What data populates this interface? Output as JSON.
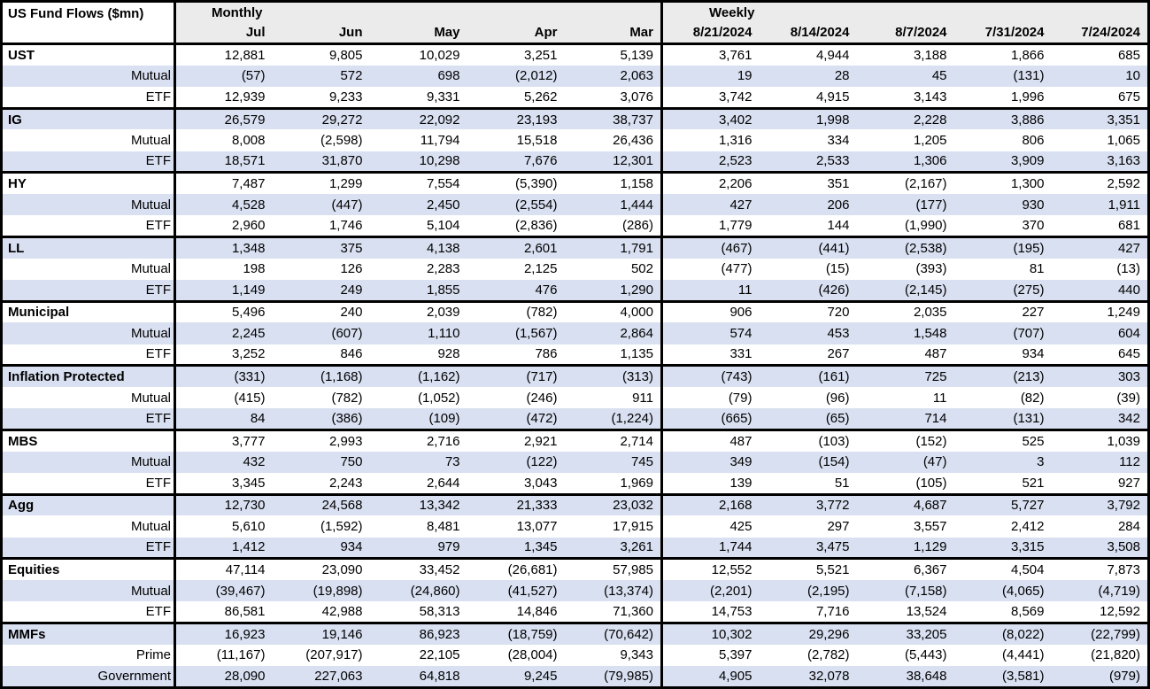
{
  "colors": {
    "band_row_bg": "#D9E0F1",
    "header_bg": "#EBEBEB",
    "border": "#000000"
  },
  "table": {
    "title": "US Fund Flows ($mn)",
    "sections": [
      {
        "label": "Monthly",
        "columns": [
          "Jul",
          "Jun",
          "May",
          "Apr",
          "Mar"
        ]
      },
      {
        "label": "Weekly",
        "columns": [
          "8/21/2024",
          "8/14/2024",
          "8/7/2024",
          "7/31/2024",
          "7/24/2024"
        ]
      }
    ],
    "groups": [
      {
        "name": "UST",
        "rows": [
          {
            "label": "UST",
            "monthly": [
              "12,881",
              "9,805",
              "10,029",
              "3,251",
              "5,139"
            ],
            "weekly": [
              "3,761",
              "4,944",
              "3,188",
              "1,866",
              "685"
            ]
          },
          {
            "label": "Mutual",
            "monthly": [
              "(57)",
              "572",
              "698",
              "(2,012)",
              "2,063"
            ],
            "weekly": [
              "19",
              "28",
              "45",
              "(131)",
              "10"
            ]
          },
          {
            "label": "ETF",
            "monthly": [
              "12,939",
              "9,233",
              "9,331",
              "5,262",
              "3,076"
            ],
            "weekly": [
              "3,742",
              "4,915",
              "3,143",
              "1,996",
              "675"
            ]
          }
        ]
      },
      {
        "name": "IG",
        "rows": [
          {
            "label": "IG",
            "monthly": [
              "26,579",
              "29,272",
              "22,092",
              "23,193",
              "38,737"
            ],
            "weekly": [
              "3,402",
              "1,998",
              "2,228",
              "3,886",
              "3,351"
            ]
          },
          {
            "label": "Mutual",
            "monthly": [
              "8,008",
              "(2,598)",
              "11,794",
              "15,518",
              "26,436"
            ],
            "weekly": [
              "1,316",
              "334",
              "1,205",
              "806",
              "1,065"
            ]
          },
          {
            "label": "ETF",
            "monthly": [
              "18,571",
              "31,870",
              "10,298",
              "7,676",
              "12,301"
            ],
            "weekly": [
              "2,523",
              "2,533",
              "1,306",
              "3,909",
              "3,163"
            ]
          }
        ]
      },
      {
        "name": "HY",
        "rows": [
          {
            "label": "HY",
            "monthly": [
              "7,487",
              "1,299",
              "7,554",
              "(5,390)",
              "1,158"
            ],
            "weekly": [
              "2,206",
              "351",
              "(2,167)",
              "1,300",
              "2,592"
            ]
          },
          {
            "label": "Mutual",
            "monthly": [
              "4,528",
              "(447)",
              "2,450",
              "(2,554)",
              "1,444"
            ],
            "weekly": [
              "427",
              "206",
              "(177)",
              "930",
              "1,911"
            ]
          },
          {
            "label": "ETF",
            "monthly": [
              "2,960",
              "1,746",
              "5,104",
              "(2,836)",
              "(286)"
            ],
            "weekly": [
              "1,779",
              "144",
              "(1,990)",
              "370",
              "681"
            ]
          }
        ]
      },
      {
        "name": "LL",
        "rows": [
          {
            "label": "LL",
            "monthly": [
              "1,348",
              "375",
              "4,138",
              "2,601",
              "1,791"
            ],
            "weekly": [
              "(467)",
              "(441)",
              "(2,538)",
              "(195)",
              "427"
            ]
          },
          {
            "label": "Mutual",
            "monthly": [
              "198",
              "126",
              "2,283",
              "2,125",
              "502"
            ],
            "weekly": [
              "(477)",
              "(15)",
              "(393)",
              "81",
              "(13)"
            ]
          },
          {
            "label": "ETF",
            "monthly": [
              "1,149",
              "249",
              "1,855",
              "476",
              "1,290"
            ],
            "weekly": [
              "11",
              "(426)",
              "(2,145)",
              "(275)",
              "440"
            ]
          }
        ]
      },
      {
        "name": "Municipal",
        "rows": [
          {
            "label": "Municipal",
            "monthly": [
              "5,496",
              "240",
              "2,039",
              "(782)",
              "4,000"
            ],
            "weekly": [
              "906",
              "720",
              "2,035",
              "227",
              "1,249"
            ]
          },
          {
            "label": "Mutual",
            "monthly": [
              "2,245",
              "(607)",
              "1,110",
              "(1,567)",
              "2,864"
            ],
            "weekly": [
              "574",
              "453",
              "1,548",
              "(707)",
              "604"
            ]
          },
          {
            "label": "ETF",
            "monthly": [
              "3,252",
              "846",
              "928",
              "786",
              "1,135"
            ],
            "weekly": [
              "331",
              "267",
              "487",
              "934",
              "645"
            ]
          }
        ]
      },
      {
        "name": "Inflation Protected",
        "rows": [
          {
            "label": "Inflation Protected",
            "monthly": [
              "(331)",
              "(1,168)",
              "(1,162)",
              "(717)",
              "(313)"
            ],
            "weekly": [
              "(743)",
              "(161)",
              "725",
              "(213)",
              "303"
            ]
          },
          {
            "label": "Mutual",
            "monthly": [
              "(415)",
              "(782)",
              "(1,052)",
              "(246)",
              "911"
            ],
            "weekly": [
              "(79)",
              "(96)",
              "11",
              "(82)",
              "(39)"
            ]
          },
          {
            "label": "ETF",
            "monthly": [
              "84",
              "(386)",
              "(109)",
              "(472)",
              "(1,224)"
            ],
            "weekly": [
              "(665)",
              "(65)",
              "714",
              "(131)",
              "342"
            ]
          }
        ]
      },
      {
        "name": "MBS",
        "rows": [
          {
            "label": "MBS",
            "monthly": [
              "3,777",
              "2,993",
              "2,716",
              "2,921",
              "2,714"
            ],
            "weekly": [
              "487",
              "(103)",
              "(152)",
              "525",
              "1,039"
            ]
          },
          {
            "label": "Mutual",
            "monthly": [
              "432",
              "750",
              "73",
              "(122)",
              "745"
            ],
            "weekly": [
              "349",
              "(154)",
              "(47)",
              "3",
              "112"
            ]
          },
          {
            "label": "ETF",
            "monthly": [
              "3,345",
              "2,243",
              "2,644",
              "3,043",
              "1,969"
            ],
            "weekly": [
              "139",
              "51",
              "(105)",
              "521",
              "927"
            ]
          }
        ]
      },
      {
        "name": "Agg",
        "rows": [
          {
            "label": "Agg",
            "monthly": [
              "12,730",
              "24,568",
              "13,342",
              "21,333",
              "23,032"
            ],
            "weekly": [
              "2,168",
              "3,772",
              "4,687",
              "5,727",
              "3,792"
            ]
          },
          {
            "label": "Mutual",
            "monthly": [
              "5,610",
              "(1,592)",
              "8,481",
              "13,077",
              "17,915"
            ],
            "weekly": [
              "425",
              "297",
              "3,557",
              "2,412",
              "284"
            ]
          },
          {
            "label": "ETF",
            "monthly": [
              "1,412",
              "934",
              "979",
              "1,345",
              "3,261"
            ],
            "weekly": [
              "1,744",
              "3,475",
              "1,129",
              "3,315",
              "3,508"
            ]
          }
        ]
      },
      {
        "name": "Equities",
        "rows": [
          {
            "label": "Equities",
            "monthly": [
              "47,114",
              "23,090",
              "33,452",
              "(26,681)",
              "57,985"
            ],
            "weekly": [
              "12,552",
              "5,521",
              "6,367",
              "4,504",
              "7,873"
            ]
          },
          {
            "label": "Mutual",
            "monthly": [
              "(39,467)",
              "(19,898)",
              "(24,860)",
              "(41,527)",
              "(13,374)"
            ],
            "weekly": [
              "(2,201)",
              "(2,195)",
              "(7,158)",
              "(4,065)",
              "(4,719)"
            ]
          },
          {
            "label": "ETF",
            "monthly": [
              "86,581",
              "42,988",
              "58,313",
              "14,846",
              "71,360"
            ],
            "weekly": [
              "14,753",
              "7,716",
              "13,524",
              "8,569",
              "12,592"
            ]
          }
        ]
      },
      {
        "name": "MMFs",
        "rows": [
          {
            "label": "MMFs",
            "monthly": [
              "16,923",
              "19,146",
              "86,923",
              "(18,759)",
              "(70,642)"
            ],
            "weekly": [
              "10,302",
              "29,296",
              "33,205",
              "(8,022)",
              "(22,799)"
            ]
          },
          {
            "label": "Prime",
            "monthly": [
              "(11,167)",
              "(207,917)",
              "22,105",
              "(28,004)",
              "9,343"
            ],
            "weekly": [
              "5,397",
              "(2,782)",
              "(5,443)",
              "(4,441)",
              "(21,820)"
            ]
          },
          {
            "label": "Government",
            "monthly": [
              "28,090",
              "227,063",
              "64,818",
              "9,245",
              "(79,985)"
            ],
            "weekly": [
              "4,905",
              "32,078",
              "38,648",
              "(3,581)",
              "(979)"
            ]
          }
        ]
      }
    ]
  }
}
